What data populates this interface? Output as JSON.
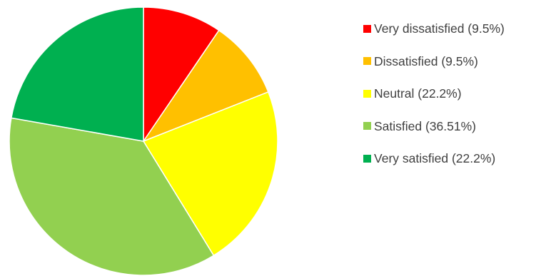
{
  "chart_data": {
    "type": "pie",
    "title": "",
    "start_angle_deg": 0,
    "direction": "clockwise",
    "legend_position": "right",
    "slices": [
      {
        "label": "Very dissatisfied (9.5%)",
        "value": 9.5,
        "color": "#ff0000"
      },
      {
        "label": "Dissatisfied (9.5%)",
        "value": 9.5,
        "color": "#ffc000"
      },
      {
        "label": "Neutral (22.2%)",
        "value": 22.2,
        "color": "#ffff00"
      },
      {
        "label": "Satisfied (36.51%)",
        "value": 36.51,
        "color": "#92d050"
      },
      {
        "label": "Very satisfied (22.2%)",
        "value": 22.2,
        "color": "#00b050"
      }
    ]
  }
}
